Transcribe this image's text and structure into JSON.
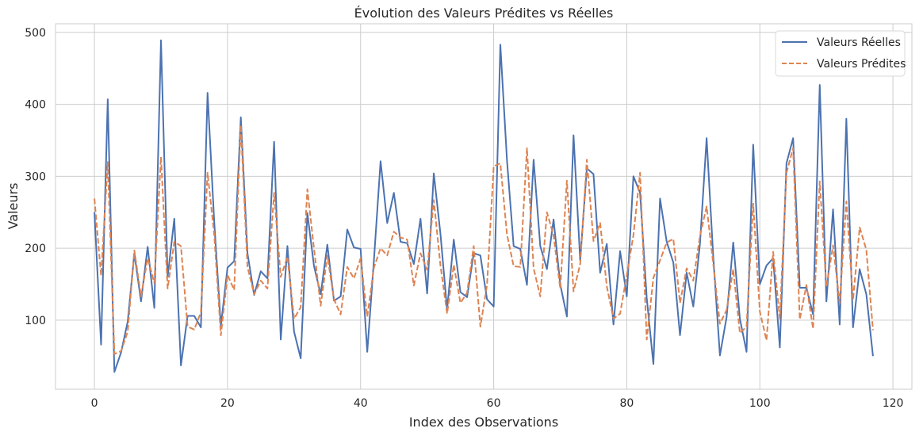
{
  "chart_data": {
    "type": "line",
    "title": "Évolution des Valeurs Prédites vs Réelles",
    "xlabel": "Index des Observations",
    "ylabel": "Valeurs",
    "xlim": [
      -5.85,
      122.85
    ],
    "ylim": [
      4.0,
      512.0
    ],
    "xticks": [
      0,
      20,
      40,
      60,
      80,
      100,
      120
    ],
    "yticks": [
      100,
      200,
      300,
      400,
      500
    ],
    "grid": true,
    "legend_position": "top-right",
    "series": [
      {
        "name": "Valeurs Réelles",
        "color": "#4c72b0",
        "style": "solid",
        "values": [
          250,
          66,
          407,
          28,
          55,
          98,
          193,
          126,
          202,
          117,
          489,
          160,
          241,
          37,
          106,
          106,
          90,
          416,
          237,
          92,
          173,
          182,
          382,
          193,
          135,
          168,
          158,
          348,
          73,
          203,
          84,
          47,
          249,
          175,
          136,
          205,
          127,
          133,
          226,
          201,
          199,
          56,
          183,
          321,
          235,
          277,
          209,
          207,
          178,
          241,
          137,
          304,
          220,
          115,
          212,
          139,
          132,
          193,
          190,
          129,
          119,
          483,
          322,
          203,
          199,
          149,
          323,
          203,
          171,
          240,
          150,
          105,
          357,
          183,
          311,
          303,
          166,
          206,
          94,
          196,
          133,
          300,
          277,
          131,
          39,
          269,
          209,
          180,
          79,
          166,
          119,
          206,
          353,
          188,
          51,
          104,
          208,
          102,
          56,
          344,
          150,
          176,
          186,
          62,
          318,
          353,
          145,
          145,
          108,
          427,
          126,
          254,
          94,
          380,
          90,
          171,
          136,
          50
        ]
      },
      {
        "name": "Valeurs Prédites",
        "color": "#dd8452",
        "style": "dashed",
        "values": [
          269,
          162,
          320,
          53,
          57,
          84,
          197,
          133,
          186,
          152,
          327,
          144,
          209,
          203,
          91,
          87,
          111,
          305,
          219,
          79,
          163,
          142,
          371,
          174,
          136,
          155,
          144,
          277,
          160,
          188,
          102,
          118,
          282,
          199,
          120,
          190,
          129,
          108,
          174,
          158,
          186,
          105,
          173,
          200,
          190,
          223,
          215,
          212,
          148,
          193,
          170,
          267,
          176,
          109,
          177,
          124,
          138,
          203,
          91,
          149,
          314,
          318,
          219,
          175,
          174,
          339,
          172,
          133,
          250,
          218,
          144,
          294,
          140,
          178,
          323,
          210,
          235,
          147,
          102,
          109,
          163,
          218,
          305,
          73,
          159,
          183,
          208,
          213,
          124,
          172,
          155,
          217,
          258,
          178,
          95,
          114,
          171,
          82,
          91,
          262,
          112,
          72,
          195,
          102,
          305,
          339,
          101,
          149,
          88,
          293,
          146,
          204,
          124,
          265,
          128,
          229,
          198,
          86
        ]
      }
    ]
  }
}
